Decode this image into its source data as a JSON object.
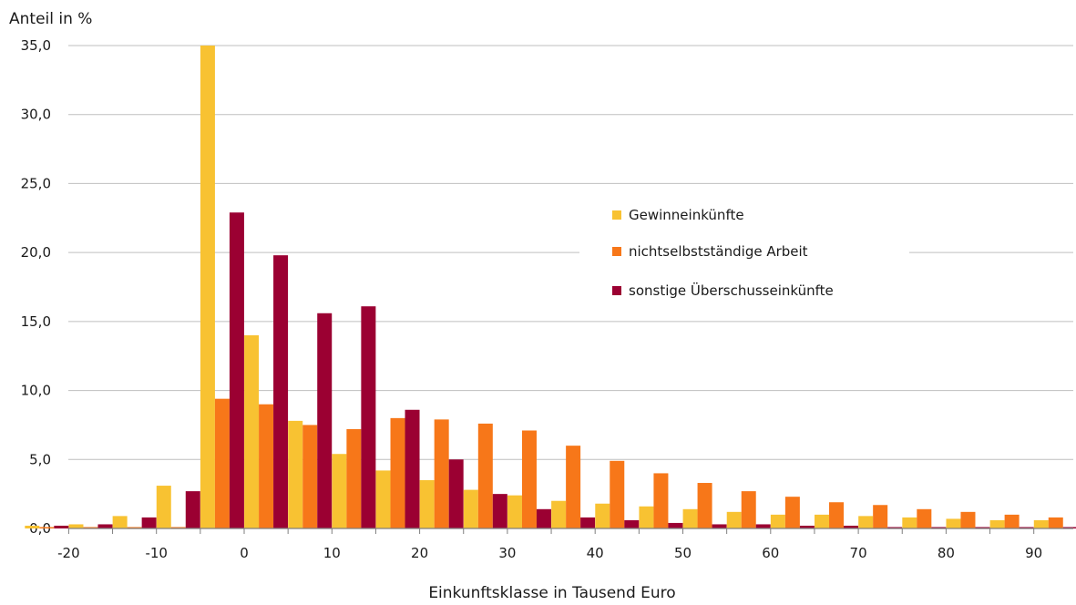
{
  "chart_data": {
    "type": "bar",
    "ylabel": "Anteil in %",
    "xlabel": "Einkunftsklasse in Tausend Euro",
    "ylim": [
      0,
      35
    ],
    "y_ticks": [
      "0,0",
      "5,0",
      "10,0",
      "15,0",
      "20,0",
      "25,0",
      "30,0",
      "35,0"
    ],
    "x_tick_labels": [
      "-20",
      "-10",
      "0",
      "10",
      "20",
      "30",
      "40",
      "50",
      "60",
      "70",
      "80",
      "90"
    ],
    "categories": [
      "-22.5",
      "-17.5",
      "-12.5",
      "-7.5",
      "-2.5",
      "2.5",
      "7.5",
      "12.5",
      "17.5",
      "22.5",
      "27.5",
      "32.5",
      "37.5",
      "42.5",
      "47.5",
      "52.5",
      "57.5",
      "62.5",
      "67.5",
      "72.5",
      "77.5",
      "82.5",
      "87.5",
      "92.5"
    ],
    "grid": "horizontal",
    "legend_position": "middle-right",
    "series": [
      {
        "name": "Gewinneinkünfte",
        "color": "#F8C232",
        "values": [
          0.2,
          0.3,
          0.9,
          3.1,
          35.0,
          14.0,
          7.8,
          5.4,
          4.2,
          3.5,
          2.8,
          2.4,
          2.0,
          1.8,
          1.6,
          1.4,
          1.2,
          1.0,
          1.0,
          0.9,
          0.8,
          0.7,
          0.6,
          0.6
        ]
      },
      {
        "name": "nichtselbstständige Arbeit",
        "color": "#F77719",
        "values": [
          0.1,
          0.1,
          0.1,
          0.1,
          9.4,
          9.0,
          7.5,
          7.2,
          8.0,
          7.9,
          7.6,
          7.1,
          6.0,
          4.9,
          4.0,
          3.3,
          2.7,
          2.3,
          1.9,
          1.7,
          1.4,
          1.2,
          1.0,
          0.8
        ]
      },
      {
        "name": "sonstige Überschusseinkünfte",
        "color": "#9B0032",
        "values": [
          0.2,
          0.3,
          0.8,
          2.7,
          22.9,
          19.8,
          15.6,
          16.1,
          8.6,
          5.0,
          2.5,
          1.4,
          0.8,
          0.6,
          0.4,
          0.3,
          0.3,
          0.2,
          0.2,
          0.1,
          0.1,
          0.1,
          0.1,
          0.1
        ]
      }
    ]
  }
}
